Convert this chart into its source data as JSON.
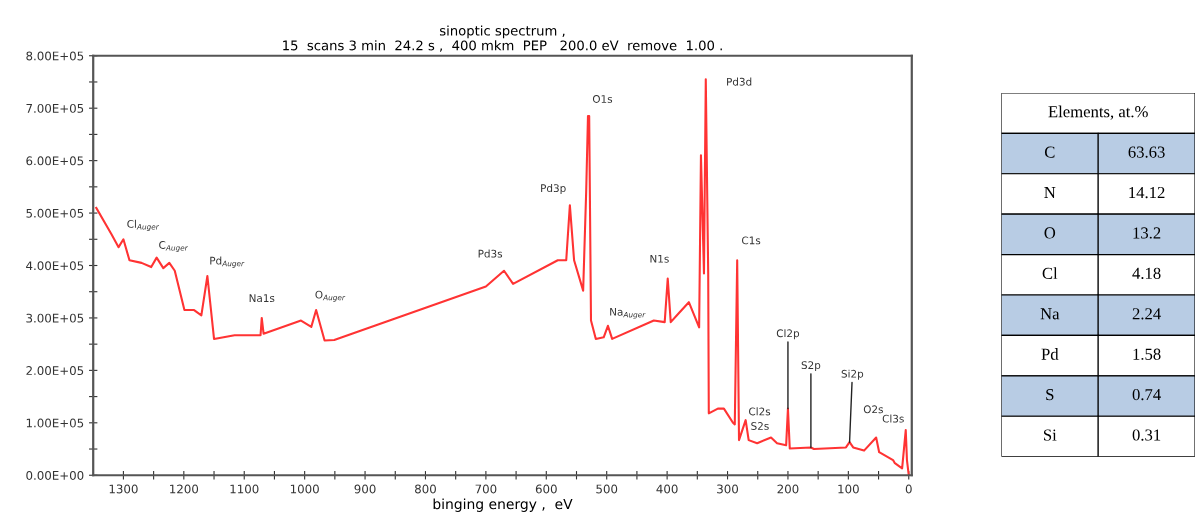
{
  "chart_data": [
    {
      "type": "line",
      "title": "sinoptic spectrum ,",
      "subtitle": "15  scans 3 min  24.2 s ,  400 mkm  PEP   200.0 eV  remove  1.00 .",
      "xlabel": "binging energy ,  eV",
      "xlim": [
        1350,
        -5
      ],
      "ylim": [
        0,
        800000
      ],
      "xticks": [
        1300,
        {
          "value": 1250,
          "label": null
        },
        1200,
        {
          "value": 1150,
          "label": null
        },
        1100,
        {
          "value": 1050,
          "label": null
        },
        1000,
        {
          "value": 950,
          "label": null
        },
        900,
        {
          "value": 850,
          "label": null
        },
        800,
        {
          "value": 750,
          "label": null
        },
        700,
        {
          "value": 650,
          "label": null
        },
        600,
        {
          "value": 550,
          "label": null
        },
        500,
        {
          "value": 450,
          "label": null
        },
        400,
        {
          "value": 350,
          "label": null
        },
        300,
        {
          "value": 250,
          "label": null
        },
        200,
        {
          "value": 150,
          "label": null
        },
        100,
        {
          "value": 50,
          "label": null
        },
        0
      ],
      "yticks": [
        {
          "value": 0,
          "label": "0.00E+00"
        },
        {
          "value": 50000,
          "label": null
        },
        {
          "value": 100000,
          "label": "1.00E+05"
        },
        {
          "value": 150000,
          "label": null
        },
        {
          "value": 200000,
          "label": "2.00E+05"
        },
        {
          "value": 250000,
          "label": null
        },
        {
          "value": 300000,
          "label": "3.00E+05"
        },
        {
          "value": 350000,
          "label": null
        },
        {
          "value": 400000,
          "label": "4.00E+05"
        },
        {
          "value": 450000,
          "label": null
        },
        {
          "value": 500000,
          "label": "5.00E+05"
        },
        {
          "value": 550000,
          "label": null
        },
        {
          "value": 600000,
          "label": "6.00E+05"
        },
        {
          "value": 650000,
          "label": null
        },
        {
          "value": 700000,
          "label": "7.00E+05"
        },
        {
          "value": 750000,
          "label": null
        },
        {
          "value": 800000,
          "label": "8.00E+05"
        }
      ],
      "grid": false,
      "legend": false,
      "marker": "none",
      "line_style": "solid",
      "series": [
        {
          "color": "#ff3333",
          "x": [
            1345,
            1320,
            1308,
            1300,
            1290,
            1270,
            1254,
            1245,
            1234,
            1224,
            1215,
            1199,
            1183,
            1171,
            1161,
            1150,
            1116,
            1077,
            1073,
            1071,
            1068,
            1006,
            989,
            981,
            967,
            951,
            700,
            670,
            655,
            581,
            567,
            561,
            554,
            539,
            534,
            531,
            529,
            526,
            518,
            505,
            498,
            491,
            422,
            404,
            399,
            394,
            380,
            364,
            347,
            344,
            339,
            336,
            332,
            331,
            316,
            306,
            291,
            288,
            284,
            281,
            270,
            265,
            251,
            228,
            218,
            203,
            200,
            197,
            162,
            157,
            104,
            98,
            92,
            74,
            54,
            49,
            26,
            23,
            11,
            5,
            3,
            0
          ],
          "values": [
            510000,
            460000,
            435000,
            450000,
            410000,
            405000,
            397000,
            415000,
            395000,
            405000,
            390000,
            315000,
            315000,
            305000,
            380000,
            260000,
            267000,
            267000,
            267000,
            300000,
            270000,
            295000,
            283000,
            315000,
            257000,
            258000,
            360000,
            390000,
            365000,
            410000,
            410000,
            515000,
            410000,
            352000,
            540000,
            685000,
            685000,
            295000,
            260000,
            263000,
            285000,
            260000,
            295000,
            292000,
            375000,
            292000,
            310000,
            330000,
            282000,
            610000,
            385000,
            755000,
            385000,
            118000,
            127000,
            127000,
            100000,
            97000,
            410000,
            67000,
            105000,
            67000,
            61000,
            72000,
            61000,
            57000,
            127000,
            51000,
            53000,
            50000,
            53000,
            63000,
            53000,
            47000,
            72000,
            44000,
            29000,
            23000,
            13000,
            86000,
            29000,
            0
          ]
        }
      ],
      "annotations": [
        {
          "text": "Cl$_{Auger}$",
          "x": 1300,
          "y": 450000
        },
        {
          "text": "C$_{Auger}$",
          "x": 1245,
          "y": 415000
        },
        {
          "text": "Pd$_{Auger}$",
          "x": 1161,
          "y": 380000
        },
        {
          "text": "Na1s",
          "x": 1071,
          "y": 300000
        },
        {
          "text": "O$_{Auger}$",
          "x": 981,
          "y": 315000
        },
        {
          "text": "Pd3s",
          "x": 670,
          "y": 390000
        },
        {
          "text": "Pd3p",
          "x": 561,
          "y": 515000
        },
        {
          "text": "O1s",
          "x": 530,
          "y": 685000
        },
        {
          "text": "Na$_{Auger}$",
          "x": 498,
          "y": 285000
        },
        {
          "text": "N1s",
          "x": 399,
          "y": 375000
        },
        {
          "text": "Pd3d",
          "x": 336,
          "y": 755000
        },
        {
          "text": "C1s",
          "x": 284,
          "y": 410000
        },
        {
          "text": "Cl2p",
          "x": 200,
          "y": 127000
        },
        {
          "text": "Cl2s",
          "x": 270,
          "y": 105000
        },
        {
          "text": "S2s",
          "x": 228,
          "y": 72000
        },
        {
          "text": "S2p",
          "x": 162,
          "y": 53000
        },
        {
          "text": "Si2p",
          "x": 98,
          "y": 63000
        },
        {
          "text": "O2s",
          "x": 54,
          "y": 72000
        },
        {
          "text": "Cl3s",
          "x": 5,
          "y": 86000
        }
      ]
    },
    {
      "type": "other",
      "title": "Elements, at.%",
      "categories": [
        "C",
        "N",
        "O",
        "Cl",
        "Na",
        "Pd",
        "S",
        "Si"
      ],
      "values": [
        63.63,
        14.12,
        13.2,
        4.18,
        2.24,
        1.58,
        0.74,
        0.31
      ],
      "data_labels": true,
      "colors": [
        "#b8cce4",
        "#ffffff",
        "#b8cce4",
        "#ffffff",
        "#b8cce4",
        "#ffffff",
        "#b8cce4",
        "#ffffff"
      ]
    }
  ]
}
